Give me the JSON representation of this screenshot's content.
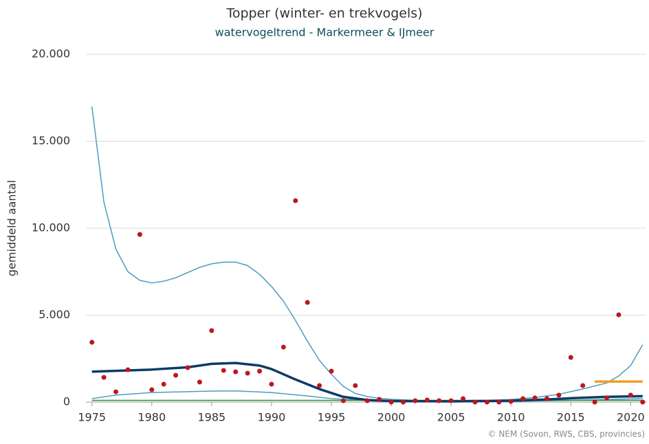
{
  "chart_data": {
    "type": "line",
    "title": "Topper (winter- en trekvogels)",
    "subtitle": "watervogeltrend - Markermeer & IJmeer",
    "y_label": "gemiddeld aantal",
    "source": "© NEM (Sovon, RWS, CBS, provincies)",
    "xlim": [
      1974.5,
      2021.3
    ],
    "xticks": [
      1975,
      1980,
      1985,
      1990,
      1995,
      2000,
      2005,
      2010,
      2015,
      2020
    ],
    "ylim": [
      0,
      20000
    ],
    "yticks": [
      0,
      {
        "value": 5000,
        "label": "5.000"
      },
      {
        "value": 10000,
        "label": "10.000"
      },
      {
        "value": 15000,
        "label": "15.000"
      },
      {
        "value": 20000,
        "label": "20.000"
      }
    ],
    "grid": true,
    "series": [
      {
        "mode": "lines",
        "color": "#4a9cc0",
        "x": [
          1975,
          1976,
          1977,
          1978,
          1979,
          1980,
          1981,
          1982,
          1983,
          1984,
          1985,
          1986,
          1987,
          1988,
          1989,
          1990,
          1991,
          1992,
          1993,
          1994,
          1995,
          1996,
          1997,
          1998,
          1999,
          2000,
          2002,
          2005,
          2008,
          2010,
          2012,
          2014,
          2016,
          2018,
          2019,
          2020,
          2021
        ],
        "values": [
          17000,
          11500,
          8800,
          7500,
          7000,
          6850,
          6950,
          7150,
          7450,
          7750,
          7950,
          8050,
          8050,
          7850,
          7350,
          6650,
          5800,
          4700,
          3500,
          2400,
          1600,
          900,
          500,
          320,
          220,
          160,
          100,
          80,
          100,
          150,
          260,
          450,
          750,
          1100,
          1500,
          2100,
          3300
        ]
      },
      {
        "mode": "lines",
        "color": "#4a9cc0",
        "x": [
          1975,
          1977,
          1980,
          1985,
          1987,
          1990,
          1993,
          1995,
          2000,
          2005,
          2010,
          2015,
          2021
        ],
        "values": [
          200,
          400,
          550,
          630,
          640,
          550,
          350,
          200,
          40,
          20,
          40,
          100,
          200
        ]
      },
      {
        "mode": "lines",
        "color": "#2e8b3e",
        "x": [
          1975,
          2021
        ],
        "values": [
          100,
          100
        ]
      },
      {
        "mode": "lines",
        "color": "#0d3b66",
        "emphasis": true,
        "x": [
          1975,
          1980,
          1983,
          1985,
          1987,
          1989,
          1990,
          1992,
          1994,
          1996,
          1998,
          2000,
          2005,
          2010,
          2013,
          2015,
          2018,
          2021
        ],
        "values": [
          1750,
          1870,
          2000,
          2200,
          2250,
          2100,
          1900,
          1300,
          750,
          300,
          120,
          60,
          40,
          80,
          150,
          220,
          300,
          340
        ]
      },
      {
        "mode": "lines",
        "color": "#f29c1f",
        "emphasis": true,
        "x": [
          2017,
          2021
        ],
        "values": [
          1180,
          1180
        ]
      },
      {
        "mode": "markers",
        "color": "#c0161c",
        "x": [
          1975,
          1976,
          1977,
          1978,
          1979,
          1980,
          1981,
          1982,
          1983,
          1984,
          1985,
          1986,
          1987,
          1988,
          1989,
          1990,
          1991,
          1992,
          1993,
          1994,
          1995,
          1996,
          1997,
          1998,
          1999,
          2000,
          2001,
          2002,
          2003,
          2004,
          2005,
          2006,
          2007,
          2008,
          2009,
          2010,
          2011,
          2012,
          2013,
          2014,
          2015,
          2016,
          2017,
          2018,
          2019,
          2020,
          2021
        ],
        "values": [
          3440,
          1420,
          590,
          1860,
          9640,
          710,
          1030,
          1540,
          1980,
          1150,
          4110,
          1820,
          1740,
          1660,
          1780,
          1030,
          3160,
          11580,
          5730,
          950,
          1780,
          80,
          950,
          80,
          160,
          0,
          0,
          80,
          120,
          80,
          80,
          200,
          0,
          0,
          0,
          40,
          200,
          240,
          200,
          400,
          2570,
          950,
          0,
          240,
          5020,
          400,
          0
        ]
      }
    ]
  }
}
